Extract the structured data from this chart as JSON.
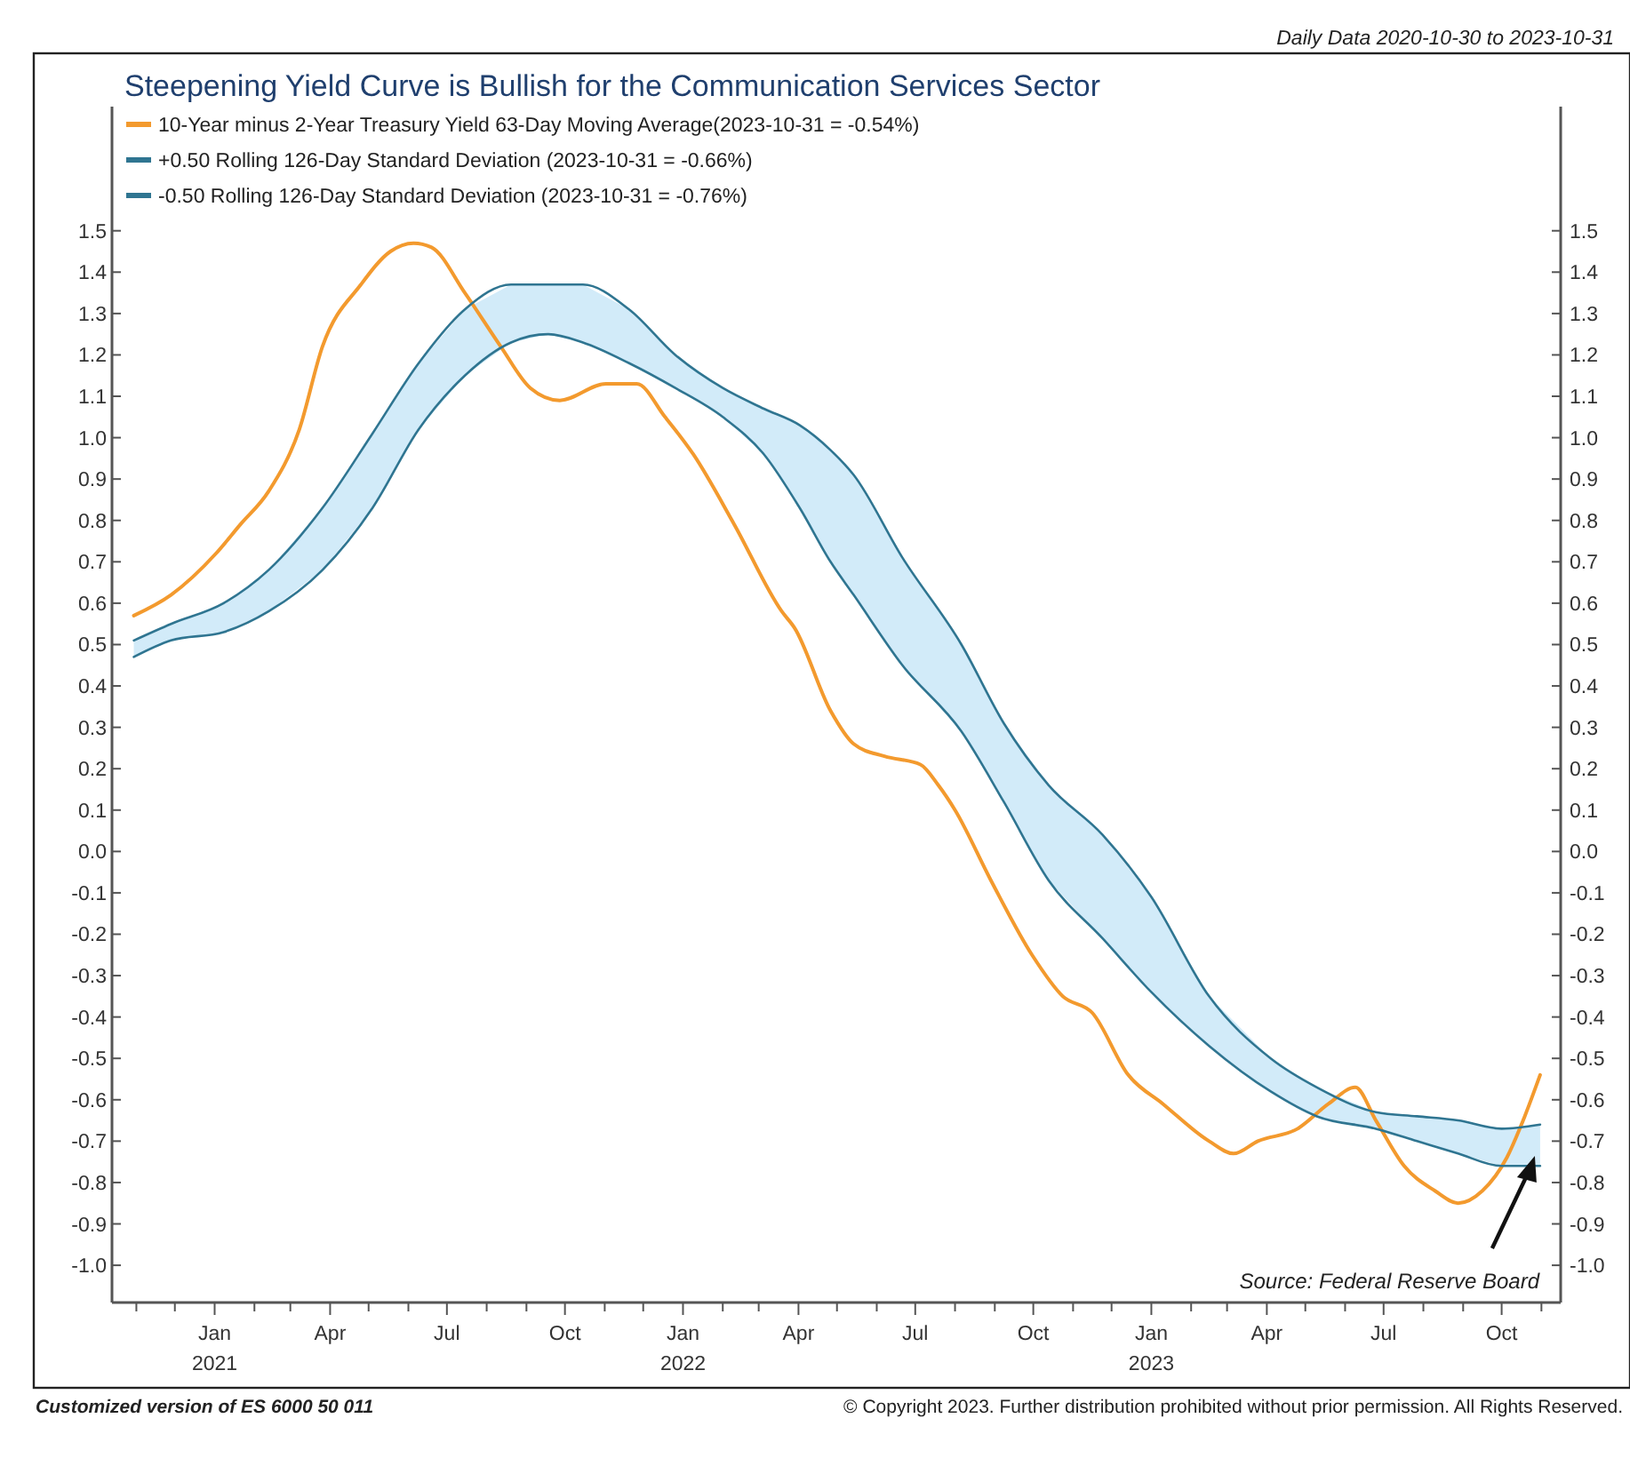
{
  "chart_data": {
    "type": "line",
    "title": "Steepening Yield Curve is Bullish for the Communication Services Sector",
    "annotations": [
      "Daily Data 2020-10-30 to 2023-10-31",
      "Source:   Federal Reserve Board",
      "Customized version of ES 6000 50 011",
      "© Copyright 2023. Further distribution prohibited without prior permission. All Rights Reserved."
    ],
    "legend": "top left",
    "xlim": [
      "2020-10-13",
      "2023-11-16"
    ],
    "xticks": [
      {
        "value": "2020-11-01",
        "label": null
      },
      {
        "value": "2020-12-01",
        "label": null
      },
      {
        "value": "2021-01-01",
        "label": "Jan\n2021"
      },
      {
        "value": "2021-02-01",
        "label": null
      },
      {
        "value": "2021-03-01",
        "label": null
      },
      {
        "value": "2021-04-01",
        "label": "Apr"
      },
      {
        "value": "2021-05-01",
        "label": null
      },
      {
        "value": "2021-06-01",
        "label": null
      },
      {
        "value": "2021-07-01",
        "label": "Jul"
      },
      {
        "value": "2021-08-01",
        "label": null
      },
      {
        "value": "2021-09-01",
        "label": null
      },
      {
        "value": "2021-10-01",
        "label": "Oct"
      },
      {
        "value": "2021-11-01",
        "label": null
      },
      {
        "value": "2021-12-01",
        "label": null
      },
      {
        "value": "2022-01-01",
        "label": "Jan\n2022"
      },
      {
        "value": "2022-02-01",
        "label": null
      },
      {
        "value": "2022-03-01",
        "label": null
      },
      {
        "value": "2022-04-01",
        "label": "Apr"
      },
      {
        "value": "2022-05-01",
        "label": null
      },
      {
        "value": "2022-06-01",
        "label": null
      },
      {
        "value": "2022-07-01",
        "label": "Jul"
      },
      {
        "value": "2022-08-01",
        "label": null
      },
      {
        "value": "2022-09-01",
        "label": null
      },
      {
        "value": "2022-10-01",
        "label": "Oct"
      },
      {
        "value": "2022-11-01",
        "label": null
      },
      {
        "value": "2022-12-01",
        "label": null
      },
      {
        "value": "2023-01-01",
        "label": "Jan\n2023"
      },
      {
        "value": "2023-02-01",
        "label": null
      },
      {
        "value": "2023-03-01",
        "label": null
      },
      {
        "value": "2023-04-01",
        "label": "Apr"
      },
      {
        "value": "2023-05-01",
        "label": null
      },
      {
        "value": "2023-06-01",
        "label": null
      },
      {
        "value": "2023-07-01",
        "label": "Jul"
      },
      {
        "value": "2023-08-01",
        "label": null
      },
      {
        "value": "2023-09-01",
        "label": null
      },
      {
        "value": "2023-10-01",
        "label": "Oct"
      },
      {
        "value": "2023-11-01",
        "label": null
      }
    ],
    "ylim": [
      -1.09,
      1.8
    ],
    "yticks": [
      {
        "value": -1,
        "label": "-1.0"
      },
      -0.9,
      -0.8,
      -0.7,
      -0.6,
      -0.5,
      -0.4,
      -0.3,
      -0.2,
      -0.1,
      {
        "value": 0,
        "label": "0.0"
      },
      0.1,
      0.2,
      0.3,
      0.4,
      0.5,
      0.6,
      0.7,
      0.8,
      0.9,
      {
        "value": 1,
        "label": "1.0"
      },
      1.1,
      1.2,
      1.3,
      1.4,
      1.5
    ],
    "y2lim": [
      -1.09,
      1.8
    ],
    "y2ticks": [
      {
        "value": -1,
        "label": "-1.0"
      },
      -0.9,
      -0.8,
      -0.7,
      -0.6,
      -0.5,
      -0.4,
      -0.3,
      -0.2,
      -0.1,
      {
        "value": 0,
        "label": "0.0"
      },
      0.1,
      0.2,
      0.3,
      0.4,
      0.5,
      0.6,
      0.7,
      0.8,
      0.9,
      {
        "value": 1,
        "label": "1.0"
      },
      1.1,
      1.2,
      1.3,
      1.4,
      1.5
    ],
    "series": [
      {
        "name": "10-Year minus 2-Year Treasury Yield 63-Day Moving Average(2023-10-31 = -0.54%)",
        "color": "#f39a2e",
        "x": [
          "2020-10-30",
          "2020-11-28",
          "2021-01-02",
          "2021-01-21",
          "2021-02-12",
          "2021-03-08",
          "2021-03-26",
          "2021-04-25",
          "2021-05-18",
          "2021-06-05",
          "2021-06-19",
          "2021-07-15",
          "2021-08-12",
          "2021-09-04",
          "2021-09-27",
          "2021-11-02",
          "2021-11-26",
          "2021-12-18",
          "2022-01-09",
          "2022-02-10",
          "2022-03-19",
          "2022-03-29",
          "2022-04-26",
          "2022-05-14",
          "2022-06-07",
          "2022-07-05",
          "2022-07-19",
          "2022-08-01",
          "2022-08-29",
          "2022-09-30",
          "2022-10-24",
          "2022-11-16",
          "2022-12-14",
          "2023-01-10",
          "2023-02-15",
          "2023-03-06",
          "2023-03-25",
          "2023-04-25",
          "2023-05-19",
          "2023-06-09",
          "2023-06-25",
          "2023-07-17",
          "2023-08-10",
          "2023-08-28",
          "2023-09-16",
          "2023-10-05",
          "2023-10-19",
          "2023-10-31"
        ],
        "values": [
          0.57,
          0.62,
          0.72,
          0.79,
          0.87,
          1.02,
          1.22,
          1.37,
          1.45,
          1.47,
          1.46,
          1.35,
          1.22,
          1.12,
          1.09,
          1.13,
          1.13,
          1.05,
          0.96,
          0.79,
          0.58,
          0.54,
          0.34,
          0.26,
          0.23,
          0.21,
          0.16,
          0.1,
          -0.07,
          -0.25,
          -0.35,
          -0.39,
          -0.54,
          -0.61,
          -0.7,
          -0.73,
          -0.7,
          -0.67,
          -0.61,
          -0.57,
          -0.65,
          -0.76,
          -0.82,
          -0.85,
          -0.82,
          -0.74,
          -0.64,
          -0.54
        ]
      },
      {
        "name": "+0.50 Rolling 126-Day Standard Deviation (2023-10-31 = -0.66%)",
        "color": "#2f7591",
        "x": [
          "2020-10-30",
          "2020-11-28",
          "2021-01-08",
          "2021-02-12",
          "2021-03-26",
          "2021-05-04",
          "2021-06-09",
          "2021-07-15",
          "2021-08-20",
          "2021-09-18",
          "2021-10-15",
          "2021-11-20",
          "2021-12-26",
          "2022-02-01",
          "2022-03-05",
          "2022-04-02",
          "2022-04-26",
          "2022-05-14",
          "2022-06-21",
          "2022-08-06",
          "2022-09-08",
          "2022-10-13",
          "2022-11-24",
          "2023-01-01",
          "2023-02-15",
          "2023-04-04",
          "2023-05-10",
          "2023-06-25",
          "2023-07-27",
          "2023-08-28",
          "2023-10-01",
          "2023-10-31"
        ],
        "values": [
          0.51,
          0.55,
          0.6,
          0.68,
          0.83,
          1.01,
          1.18,
          1.31,
          1.37,
          1.37,
          1.37,
          1.31,
          1.2,
          1.12,
          1.07,
          1.03,
          0.97,
          0.91,
          0.71,
          0.5,
          0.31,
          0.16,
          0.04,
          -0.11,
          -0.35,
          -0.5,
          -0.57,
          -0.63,
          -0.64,
          -0.65,
          -0.67,
          -0.66
        ],
        "upper": [
          0.51,
          0.55,
          0.6,
          0.68,
          0.83,
          1.01,
          1.18,
          1.31,
          1.37,
          1.37,
          1.37,
          1.31,
          1.2,
          1.12,
          1.07,
          1.03,
          0.97,
          0.91,
          0.71,
          0.5,
          0.31,
          0.16,
          0.04,
          -0.11,
          -0.35,
          -0.5,
          -0.57,
          -0.63,
          -0.64,
          -0.65,
          -0.67,
          -0.66
        ],
        "lower": [
          0.47,
          0.51,
          0.53,
          0.58,
          0.68,
          0.83,
          1.02,
          1.15,
          1.23,
          1.25,
          1.23,
          1.18,
          1.12,
          1.05,
          0.96,
          0.83,
          0.7,
          0.62,
          0.45,
          0.29,
          0.12,
          -0.07,
          -0.21,
          -0.34,
          -0.47,
          -0.58,
          -0.64,
          -0.67,
          -0.7,
          -0.73,
          -0.76,
          -0.76
        ]
      },
      {
        "name": "-0.50 Rolling 126-Day Standard Deviation (2023-10-31 = -0.76%)",
        "color": "#2f7591",
        "x": [
          "2020-10-30",
          "2020-11-28",
          "2021-01-08",
          "2021-02-12",
          "2021-03-26",
          "2021-05-04",
          "2021-06-09",
          "2021-07-15",
          "2021-08-20",
          "2021-09-18",
          "2021-10-15",
          "2021-11-20",
          "2021-12-26",
          "2022-02-01",
          "2022-03-05",
          "2022-04-02",
          "2022-04-26",
          "2022-05-14",
          "2022-06-21",
          "2022-08-06",
          "2022-09-08",
          "2022-10-13",
          "2022-11-24",
          "2023-01-01",
          "2023-02-15",
          "2023-04-04",
          "2023-05-10",
          "2023-06-25",
          "2023-07-27",
          "2023-08-28",
          "2023-10-01",
          "2023-10-31"
        ],
        "values": [
          0.47,
          0.51,
          0.53,
          0.58,
          0.68,
          0.83,
          1.02,
          1.15,
          1.23,
          1.25,
          1.23,
          1.18,
          1.12,
          1.05,
          0.96,
          0.83,
          0.7,
          0.62,
          0.45,
          0.29,
          0.12,
          -0.07,
          -0.21,
          -0.34,
          -0.47,
          -0.58,
          -0.64,
          -0.67,
          -0.7,
          -0.73,
          -0.76,
          -0.76
        ]
      }
    ]
  }
}
